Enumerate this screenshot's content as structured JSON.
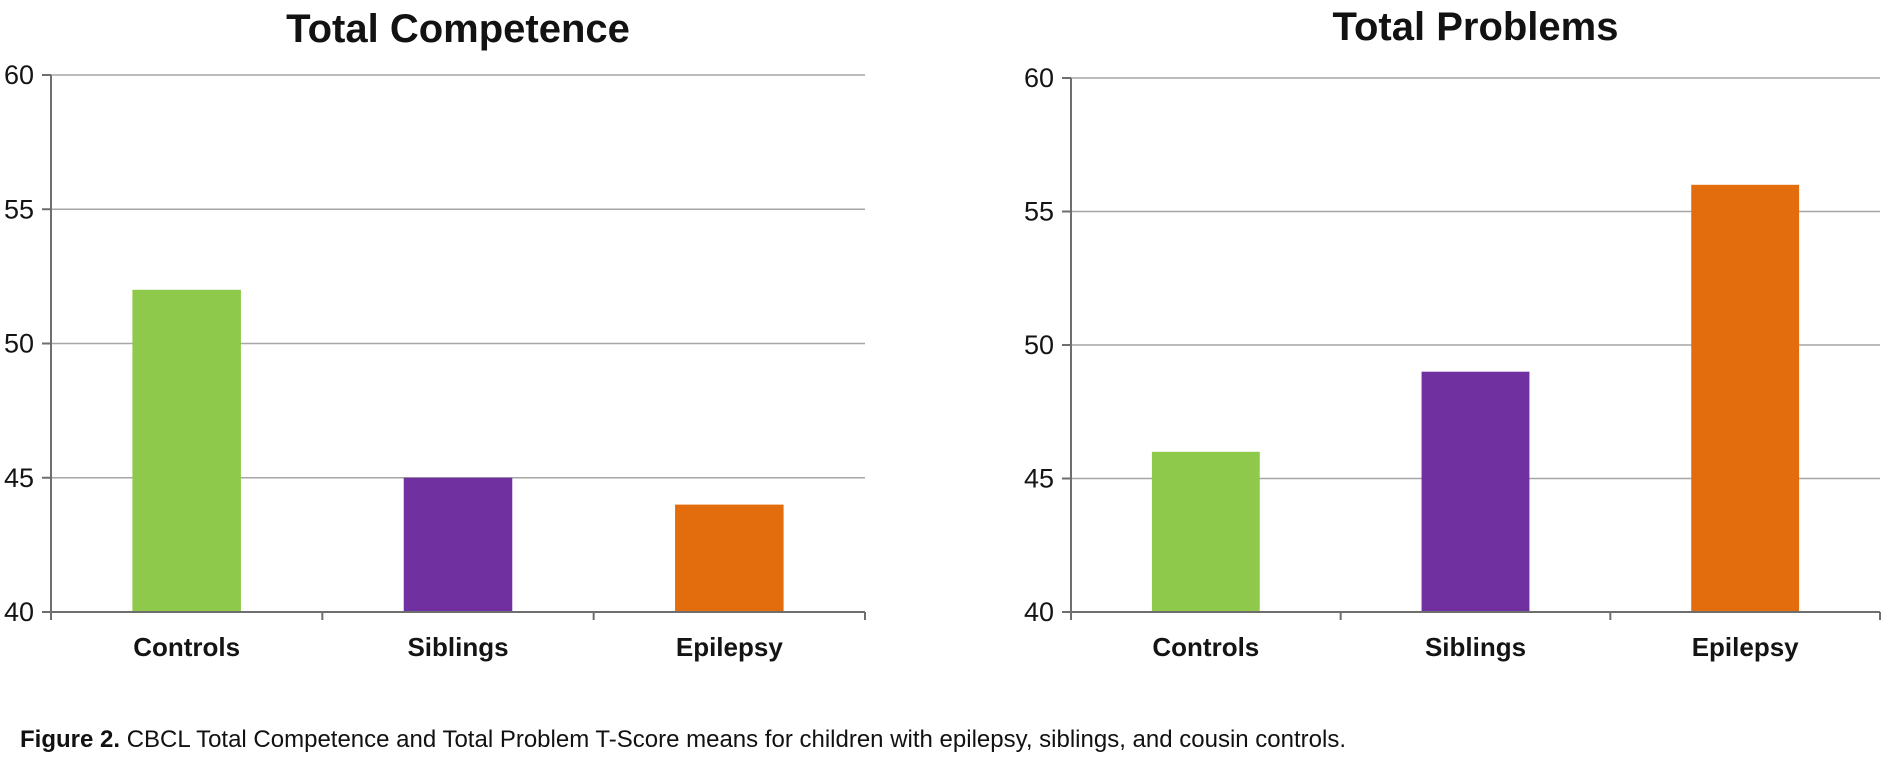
{
  "figure": {
    "caption_label": "Figure 2.",
    "caption_text": " CBCL Total Competence and Total Problem T-Score means for children with epilepsy, siblings, and cousin controls."
  },
  "palette": {
    "bar_colors": [
      "#8FC94C",
      "#7030A0",
      "#E36D0C"
    ],
    "gridline_color": "#A6A6A6",
    "axis_color": "#6E6E6E",
    "text_color": "#141414"
  },
  "chart_data": [
    {
      "type": "bar",
      "title": "Total Competence",
      "categories": [
        "Controls",
        "Siblings",
        "Epilepsy"
      ],
      "values": [
        52,
        45,
        44
      ],
      "xlabel": "",
      "ylabel": "",
      "ylim": [
        40,
        60
      ],
      "yticks": [
        40,
        45,
        50,
        55,
        60
      ],
      "grid": true,
      "legend_position": "none"
    },
    {
      "type": "bar",
      "title": "Total Problems",
      "categories": [
        "Controls",
        "Siblings",
        "Epilepsy"
      ],
      "values": [
        46,
        49,
        56
      ],
      "xlabel": "",
      "ylabel": "",
      "ylim": [
        40,
        60
      ],
      "yticks": [
        40,
        45,
        50,
        55,
        60
      ],
      "grid": true,
      "legend_position": "none"
    }
  ]
}
